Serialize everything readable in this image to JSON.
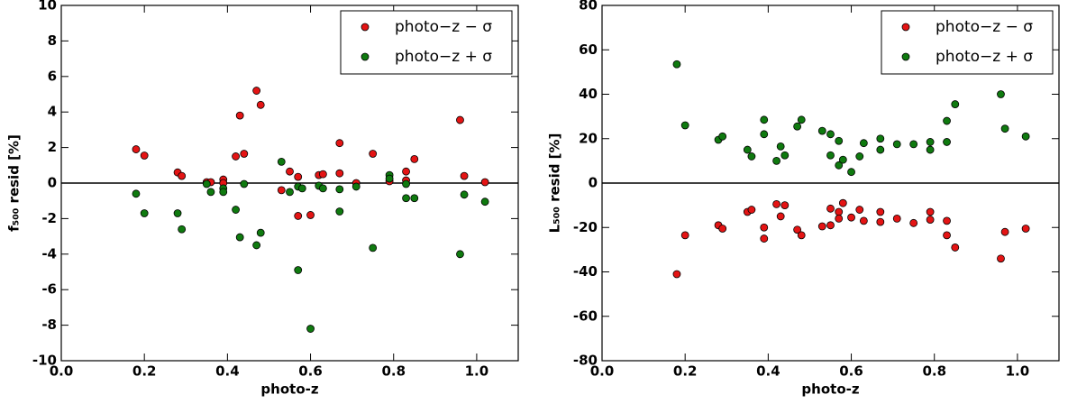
{
  "chart_data": [
    {
      "type": "scatter",
      "xlabel": "photo-z",
      "ylabel": "f₅₀₀ resid [%]",
      "xlim": [
        0,
        1.1
      ],
      "ylim": [
        -10,
        10
      ],
      "xticks": [
        {
          "value": 0,
          "label": "0.0"
        },
        0.2,
        0.4,
        0.6,
        0.8,
        {
          "value": 1,
          "label": "1.0"
        }
      ],
      "yticks": [
        -10,
        -8,
        -6,
        -4,
        -2,
        0,
        2,
        4,
        6,
        8,
        10
      ],
      "hline": 0,
      "legend": "upper-right",
      "series": [
        {
          "name": "photo−z − σ",
          "color": "#e41414",
          "x": [
            0.18,
            0.2,
            0.28,
            0.29,
            0.35,
            0.36,
            0.39,
            0.39,
            0.42,
            0.43,
            0.44,
            0.47,
            0.48,
            0.53,
            0.55,
            0.57,
            0.57,
            0.6,
            0.62,
            0.63,
            0.67,
            0.67,
            0.71,
            0.75,
            0.79,
            0.83,
            0.83,
            0.85,
            0.96,
            0.97,
            1.02
          ],
          "values": [
            1.9,
            1.55,
            0.6,
            0.4,
            0.05,
            0.05,
            0.2,
            0.0,
            1.5,
            3.8,
            1.65,
            5.2,
            4.4,
            -0.4,
            0.65,
            0.35,
            -1.85,
            -1.8,
            0.45,
            0.5,
            2.25,
            0.55,
            0.0,
            1.65,
            0.1,
            0.65,
            0.15,
            1.35,
            3.55,
            0.4,
            0.05
          ]
        },
        {
          "name": "photo−z + σ",
          "color": "#0f7a0f",
          "x": [
            0.18,
            0.2,
            0.28,
            0.29,
            0.35,
            0.36,
            0.39,
            0.39,
            0.42,
            0.43,
            0.44,
            0.47,
            0.48,
            0.53,
            0.55,
            0.57,
            0.57,
            0.58,
            0.6,
            0.62,
            0.63,
            0.67,
            0.67,
            0.71,
            0.75,
            0.79,
            0.79,
            0.83,
            0.83,
            0.85,
            0.96,
            0.97,
            1.02
          ],
          "values": [
            -0.6,
            -1.7,
            -1.7,
            -2.6,
            -0.05,
            -0.5,
            -0.3,
            -0.5,
            -1.5,
            -3.05,
            -0.05,
            -3.5,
            -2.8,
            1.2,
            -0.5,
            -0.2,
            -4.9,
            -0.3,
            -8.2,
            -0.15,
            -0.3,
            -1.6,
            -0.35,
            -0.2,
            -3.65,
            0.45,
            0.25,
            -0.85,
            -0.05,
            -0.85,
            -4.0,
            -0.65,
            -1.05
          ]
        }
      ]
    },
    {
      "type": "scatter",
      "xlabel": "photo-z",
      "ylabel": "L₅₀₀ resid [%]",
      "xlim": [
        0,
        1.1
      ],
      "ylim": [
        -80,
        80
      ],
      "xticks": [
        {
          "value": 0,
          "label": "0.0"
        },
        0.2,
        0.4,
        0.6,
        0.8,
        {
          "value": 1,
          "label": "1.0"
        }
      ],
      "yticks": [
        -80,
        -60,
        -40,
        -20,
        0,
        20,
        40,
        60,
        80
      ],
      "hline": 0,
      "legend": "upper-right",
      "series": [
        {
          "name": "photo−z − σ",
          "color": "#e41414",
          "x": [
            0.18,
            0.2,
            0.28,
            0.29,
            0.35,
            0.36,
            0.39,
            0.39,
            0.42,
            0.43,
            0.44,
            0.47,
            0.48,
            0.53,
            0.55,
            0.55,
            0.57,
            0.57,
            0.58,
            0.6,
            0.62,
            0.63,
            0.67,
            0.67,
            0.71,
            0.75,
            0.79,
            0.79,
            0.83,
            0.83,
            0.85,
            0.96,
            0.97,
            1.02
          ],
          "values": [
            -41,
            -23.5,
            -19,
            -20.5,
            -13,
            -12,
            -20,
            -25,
            -9.5,
            -15,
            -10,
            -21,
            -23.5,
            -19.5,
            -19,
            -11.5,
            -13,
            -16,
            -9,
            -15.5,
            -12,
            -17,
            -13,
            -17.5,
            -16,
            -18,
            -13,
            -16.5,
            -17,
            -23.5,
            -29,
            -34,
            -22,
            -20.5
          ]
        },
        {
          "name": "photo−z + σ",
          "color": "#0f7a0f",
          "x": [
            0.18,
            0.2,
            0.28,
            0.29,
            0.35,
            0.36,
            0.39,
            0.39,
            0.42,
            0.43,
            0.44,
            0.47,
            0.48,
            0.53,
            0.55,
            0.55,
            0.57,
            0.57,
            0.58,
            0.6,
            0.62,
            0.63,
            0.67,
            0.67,
            0.71,
            0.75,
            0.79,
            0.79,
            0.83,
            0.83,
            0.85,
            0.96,
            0.97,
            1.02
          ],
          "values": [
            53.5,
            26,
            19.5,
            21,
            15,
            12,
            28.5,
            22,
            10,
            16.5,
            12.5,
            25.5,
            28.5,
            23.5,
            22,
            12.5,
            19,
            8,
            10.5,
            5,
            12,
            18,
            20,
            15,
            17.5,
            17.5,
            18.5,
            15,
            28,
            18.5,
            35.5,
            40,
            24.5,
            21
          ]
        }
      ]
    }
  ]
}
